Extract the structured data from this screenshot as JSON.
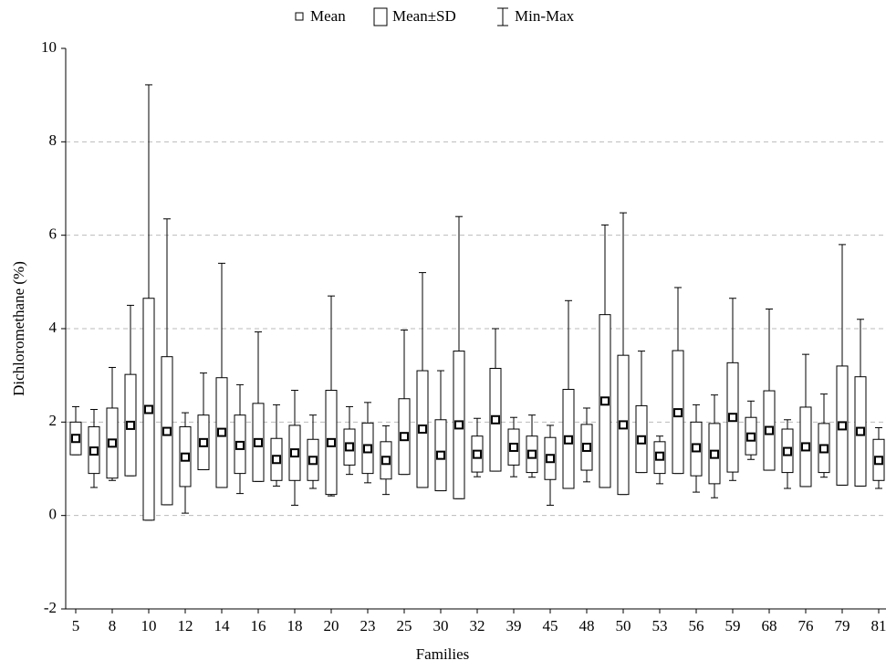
{
  "chart_data": {
    "type": "box",
    "legend": [
      "Mean",
      "Mean±SD",
      "Min-Max"
    ],
    "x_label": "Families",
    "y_label": "Dichloromethane (%)",
    "categories": [
      "5",
      null,
      "8",
      null,
      "10",
      null,
      "12",
      null,
      "14",
      null,
      "16",
      null,
      "18",
      null,
      "20",
      null,
      "23",
      null,
      "25",
      null,
      "30",
      null,
      "32",
      null,
      "39",
      null,
      "45",
      null,
      "48",
      null,
      "50",
      null,
      "53",
      null,
      "56",
      null,
      "59",
      null,
      "68",
      null,
      "76",
      null,
      "79",
      null,
      "81"
    ],
    "mean": [
      1.65,
      1.38,
      1.55,
      1.93,
      2.27,
      1.8,
      1.25,
      1.56,
      1.78,
      1.5,
      1.56,
      1.2,
      1.34,
      1.18,
      1.56,
      1.47,
      1.43,
      1.18,
      1.69,
      1.85,
      1.29,
      1.94,
      1.31,
      2.05,
      1.46,
      1.31,
      1.22,
      1.62,
      1.46,
      2.45,
      1.94,
      1.62,
      1.27,
      2.2,
      1.45,
      1.31,
      2.1,
      1.68,
      1.82,
      1.37,
      1.47,
      1.43,
      1.92,
      1.8,
      1.18
    ],
    "box_low": [
      1.3,
      0.9,
      0.8,
      0.85,
      -0.1,
      0.23,
      0.62,
      0.98,
      0.6,
      0.9,
      0.73,
      0.75,
      0.75,
      0.75,
      0.45,
      1.08,
      0.9,
      0.78,
      0.88,
      0.6,
      0.53,
      0.36,
      0.93,
      0.95,
      1.08,
      0.92,
      0.77,
      0.58,
      0.97,
      0.6,
      0.45,
      0.92,
      0.9,
      0.9,
      0.85,
      0.68,
      0.93,
      1.3,
      0.97,
      0.92,
      0.62,
      0.92,
      0.65,
      0.63,
      0.75
    ],
    "box_high": [
      2.0,
      1.9,
      2.3,
      3.02,
      4.65,
      3.4,
      1.9,
      2.15,
      2.95,
      2.15,
      2.4,
      1.65,
      1.93,
      1.63,
      2.68,
      1.85,
      1.98,
      1.58,
      2.5,
      3.1,
      2.05,
      3.52,
      1.7,
      3.15,
      1.85,
      1.7,
      1.67,
      2.7,
      1.95,
      4.3,
      3.43,
      2.35,
      1.58,
      3.53,
      2.0,
      1.97,
      3.27,
      2.1,
      2.67,
      1.85,
      2.32,
      1.97,
      3.2,
      2.97,
      1.63
    ],
    "min": [
      1.3,
      0.6,
      0.75,
      0.85,
      -0.1,
      0.23,
      0.05,
      0.98,
      0.6,
      0.47,
      0.73,
      0.63,
      0.22,
      0.58,
      0.42,
      0.88,
      0.7,
      0.45,
      0.88,
      0.6,
      0.53,
      0.36,
      0.83,
      0.95,
      0.83,
      0.82,
      0.22,
      0.58,
      0.72,
      0.6,
      0.45,
      0.92,
      0.68,
      0.9,
      0.5,
      0.38,
      0.75,
      1.2,
      0.97,
      0.58,
      0.62,
      0.82,
      0.65,
      0.63,
      0.58
    ],
    "max": [
      2.33,
      2.27,
      3.17,
      4.5,
      9.22,
      6.35,
      2.2,
      3.05,
      5.4,
      2.8,
      3.93,
      2.37,
      2.68,
      2.15,
      4.7,
      2.33,
      2.42,
      1.92,
      3.97,
      5.2,
      3.1,
      6.4,
      2.08,
      4.0,
      2.1,
      2.15,
      1.93,
      4.6,
      2.3,
      6.22,
      6.48,
      3.52,
      1.7,
      4.88,
      2.37,
      2.58,
      4.65,
      2.45,
      4.42,
      2.05,
      3.45,
      2.6,
      5.8,
      4.2,
      1.88
    ],
    "ylim": [
      -2,
      10
    ],
    "yticks": [
      -2,
      0,
      2,
      4,
      6,
      8,
      10
    ],
    "grid": true,
    "color": "#000000"
  }
}
